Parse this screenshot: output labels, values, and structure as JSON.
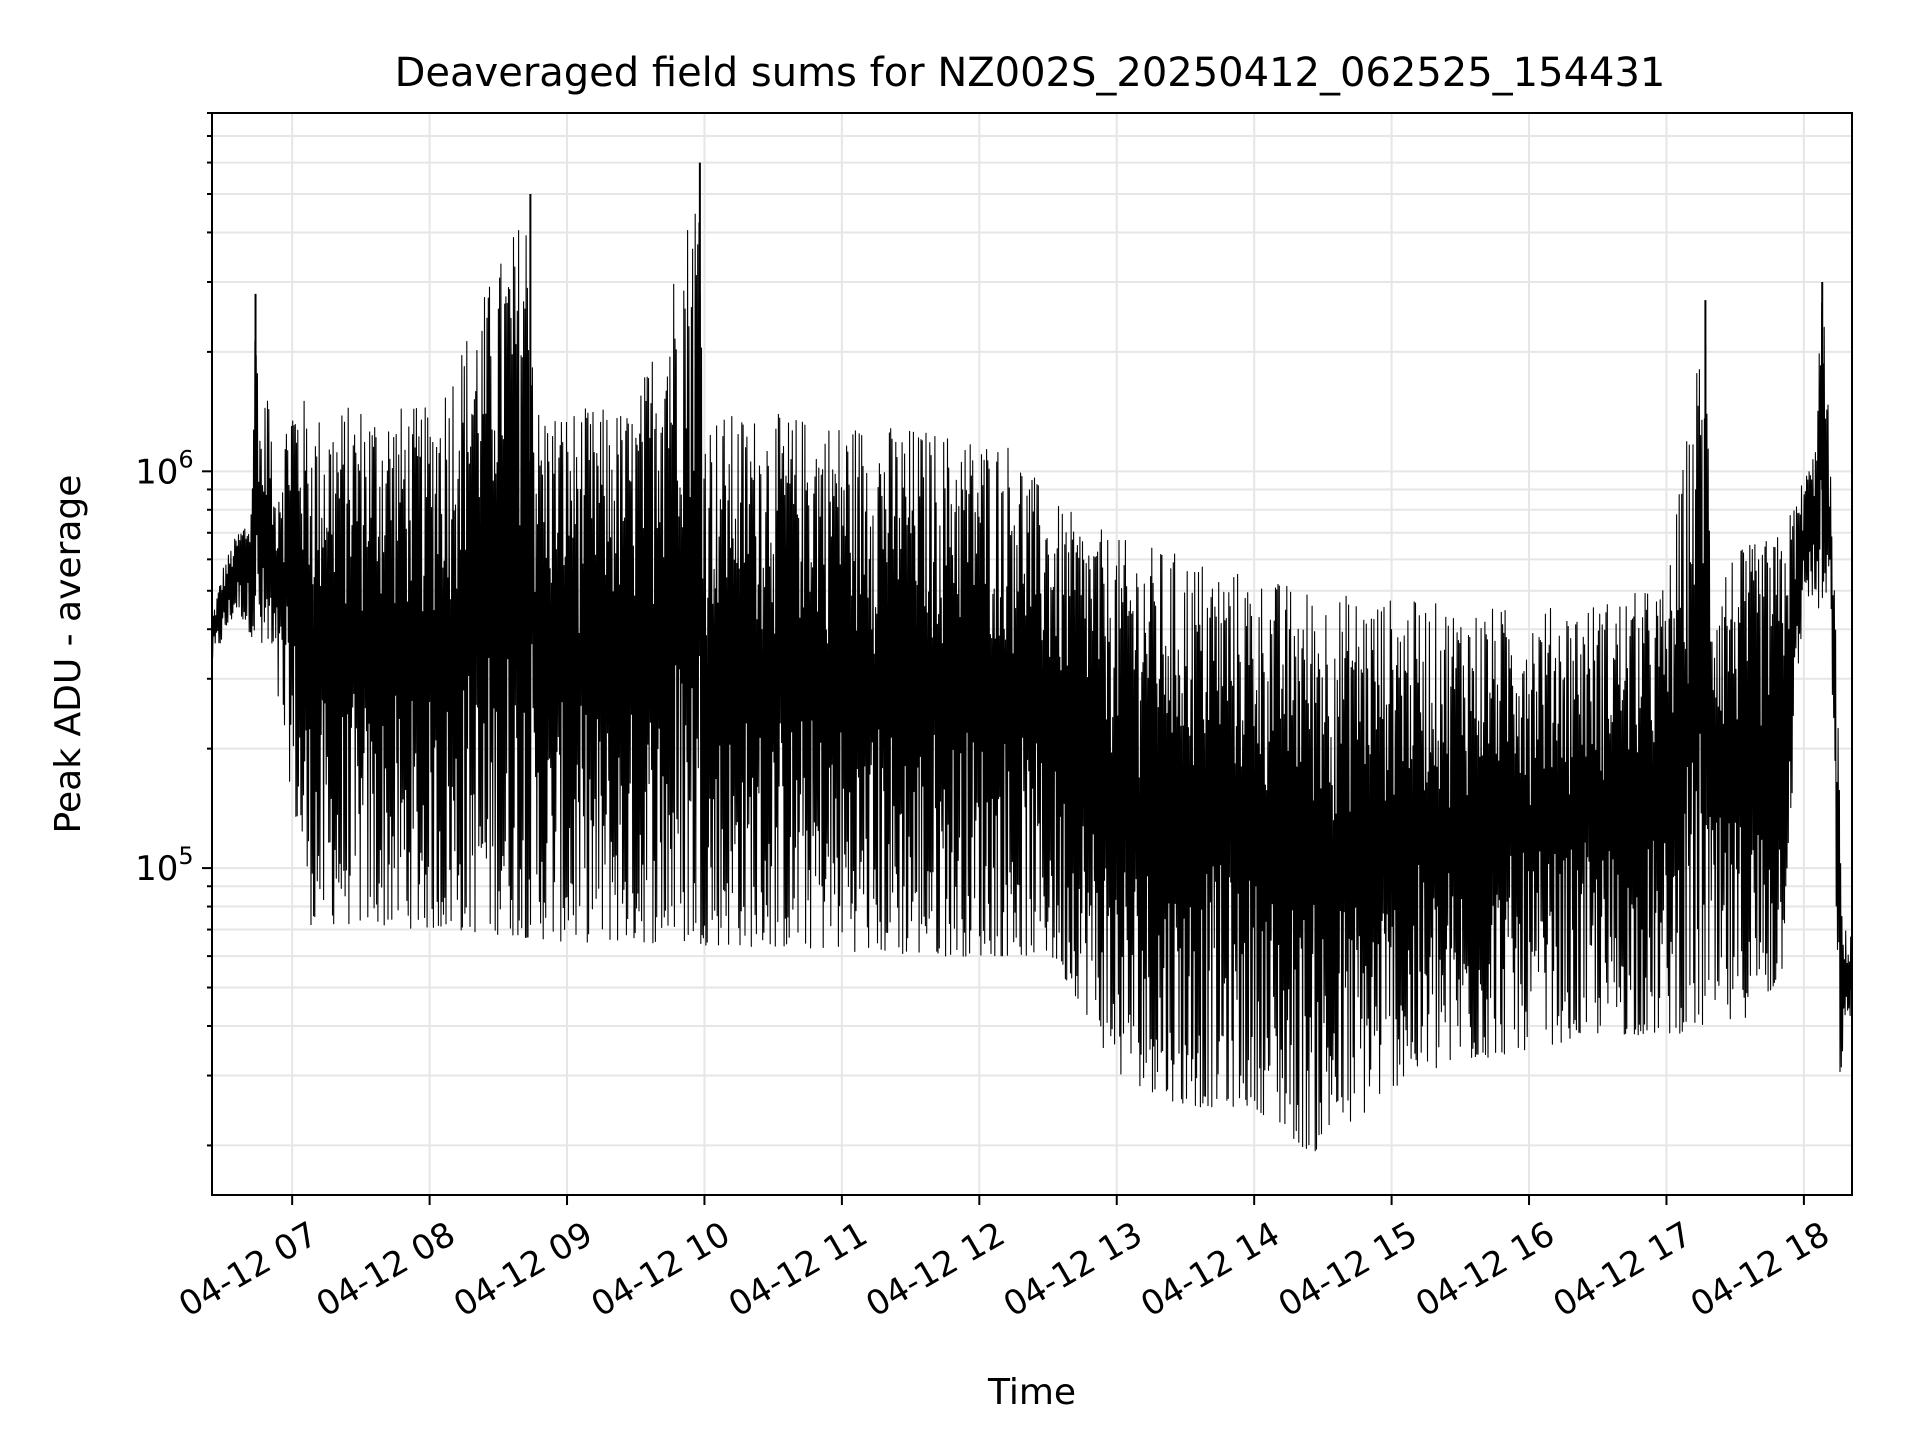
{
  "chart_data": {
    "type": "line",
    "title": "Deaveraged field sums for NZ002S_20250412_062525_154431",
    "xlabel": "Time",
    "ylabel": "Peak ADU - average",
    "yscale": "log",
    "ylim": [
      15000,
      8000000
    ],
    "xlim": [
      "2025-04-12 06:25",
      "2025-04-12 18:21"
    ],
    "grid": true,
    "legend": "none",
    "line_color": "#000000",
    "grid_color": "#e6e6e6",
    "x_ticks": [
      {
        "label": "04-12 07",
        "t": "2025-04-12 07:00"
      },
      {
        "label": "04-12 08",
        "t": "2025-04-12 08:00"
      },
      {
        "label": "04-12 09",
        "t": "2025-04-12 09:00"
      },
      {
        "label": "04-12 10",
        "t": "2025-04-12 10:00"
      },
      {
        "label": "04-12 11",
        "t": "2025-04-12 11:00"
      },
      {
        "label": "04-12 12",
        "t": "2025-04-12 12:00"
      },
      {
        "label": "04-12 13",
        "t": "2025-04-12 13:00"
      },
      {
        "label": "04-12 14",
        "t": "2025-04-12 14:00"
      },
      {
        "label": "04-12 15",
        "t": "2025-04-12 15:00"
      },
      {
        "label": "04-12 16",
        "t": "2025-04-12 16:00"
      },
      {
        "label": "04-12 17",
        "t": "2025-04-12 17:00"
      },
      {
        "label": "04-12 18",
        "t": "2025-04-12 18:00"
      }
    ],
    "y_ticks": [
      {
        "mantissa": "10",
        "exp": "5",
        "value": 100000
      },
      {
        "mantissa": "10",
        "exp": "6",
        "value": 1000000
      }
    ],
    "upper_envelope": [
      [
        "2025-04-12 06:25",
        430000
      ],
      [
        "2025-04-12 06:30",
        580000
      ],
      [
        "2025-04-12 06:36",
        700000
      ],
      [
        "2025-04-12 06:42",
        800000
      ],
      [
        "2025-04-12 06:44",
        2800000
      ],
      [
        "2025-04-12 06:47",
        1100000
      ],
      [
        "2025-04-12 06:49",
        1900000
      ],
      [
        "2025-04-12 06:52",
        900000
      ],
      [
        "2025-04-12 07:00",
        1700000
      ],
      [
        "2025-04-12 07:10",
        1400000
      ],
      [
        "2025-04-12 07:30",
        1500000
      ],
      [
        "2025-04-12 08:00",
        1450000
      ],
      [
        "2025-04-12 08:44",
        5000000
      ],
      [
        "2025-04-12 08:46",
        1500000
      ],
      [
        "2025-04-12 09:00",
        1450000
      ],
      [
        "2025-04-12 09:30",
        1450000
      ],
      [
        "2025-04-12 09:58",
        6000000
      ],
      [
        "2025-04-12 10:00",
        1400000
      ],
      [
        "2025-04-12 10:30",
        1400000
      ],
      [
        "2025-04-12 11:00",
        1350000
      ],
      [
        "2025-04-12 11:30",
        1300000
      ],
      [
        "2025-04-12 12:15",
        1200000
      ],
      [
        "2025-04-12 12:30",
        850000
      ],
      [
        "2025-04-12 13:00",
        680000
      ],
      [
        "2025-04-12 13:30",
        620000
      ],
      [
        "2025-04-12 14:00",
        550000
      ],
      [
        "2025-04-12 14:30",
        500000
      ],
      [
        "2025-04-12 15:00",
        480000
      ],
      [
        "2025-04-12 15:30",
        460000
      ],
      [
        "2025-04-12 16:00",
        450000
      ],
      [
        "2025-04-12 16:30",
        470000
      ],
      [
        "2025-04-12 17:00",
        520000
      ],
      [
        "2025-04-12 17:17",
        2700000
      ],
      [
        "2025-04-12 17:20",
        600000
      ],
      [
        "2025-04-12 17:50",
        700000
      ],
      [
        "2025-04-12 18:04",
        1100000
      ],
      [
        "2025-04-12 18:08",
        3000000
      ],
      [
        "2025-04-12 18:11",
        1300000
      ],
      [
        "2025-04-12 18:14",
        400000
      ],
      [
        "2025-04-12 18:17",
        70000
      ],
      [
        "2025-04-12 18:21",
        70000
      ]
    ],
    "lower_envelope": [
      [
        "2025-04-12 06:25",
        330000
      ],
      [
        "2025-04-12 06:36",
        450000
      ],
      [
        "2025-04-12 06:52",
        300000
      ],
      [
        "2025-04-12 07:00",
        150000
      ],
      [
        "2025-04-12 07:08",
        72000
      ],
      [
        "2025-04-12 07:30",
        72000
      ],
      [
        "2025-04-12 08:00",
        70000
      ],
      [
        "2025-04-12 08:30",
        68000
      ],
      [
        "2025-04-12 09:00",
        65000
      ],
      [
        "2025-04-12 09:30",
        65000
      ],
      [
        "2025-04-12 10:00",
        64000
      ],
      [
        "2025-04-12 10:30",
        63000
      ],
      [
        "2025-04-12 11:00",
        62000
      ],
      [
        "2025-04-12 11:30",
        60000
      ],
      [
        "2025-04-12 12:00",
        60000
      ],
      [
        "2025-04-12 12:30",
        60000
      ],
      [
        "2025-04-12 12:45",
        45000
      ],
      [
        "2025-04-12 13:00",
        30000
      ],
      [
        "2025-04-12 13:30",
        25000
      ],
      [
        "2025-04-12 14:00",
        25000
      ],
      [
        "2025-04-12 14:25",
        19000
      ],
      [
        "2025-04-12 14:45",
        23000
      ],
      [
        "2025-04-12 15:00",
        28000
      ],
      [
        "2025-04-12 15:30",
        32000
      ],
      [
        "2025-04-12 16:00",
        35000
      ],
      [
        "2025-04-12 16:30",
        38000
      ],
      [
        "2025-04-12 17:00",
        38000
      ],
      [
        "2025-04-12 17:30",
        40000
      ],
      [
        "2025-04-12 17:50",
        50000
      ],
      [
        "2025-04-12 18:00",
        500000
      ],
      [
        "2025-04-12 18:12",
        400000
      ],
      [
        "2025-04-12 18:15",
        28000
      ],
      [
        "2025-04-12 18:21",
        45000
      ]
    ]
  }
}
